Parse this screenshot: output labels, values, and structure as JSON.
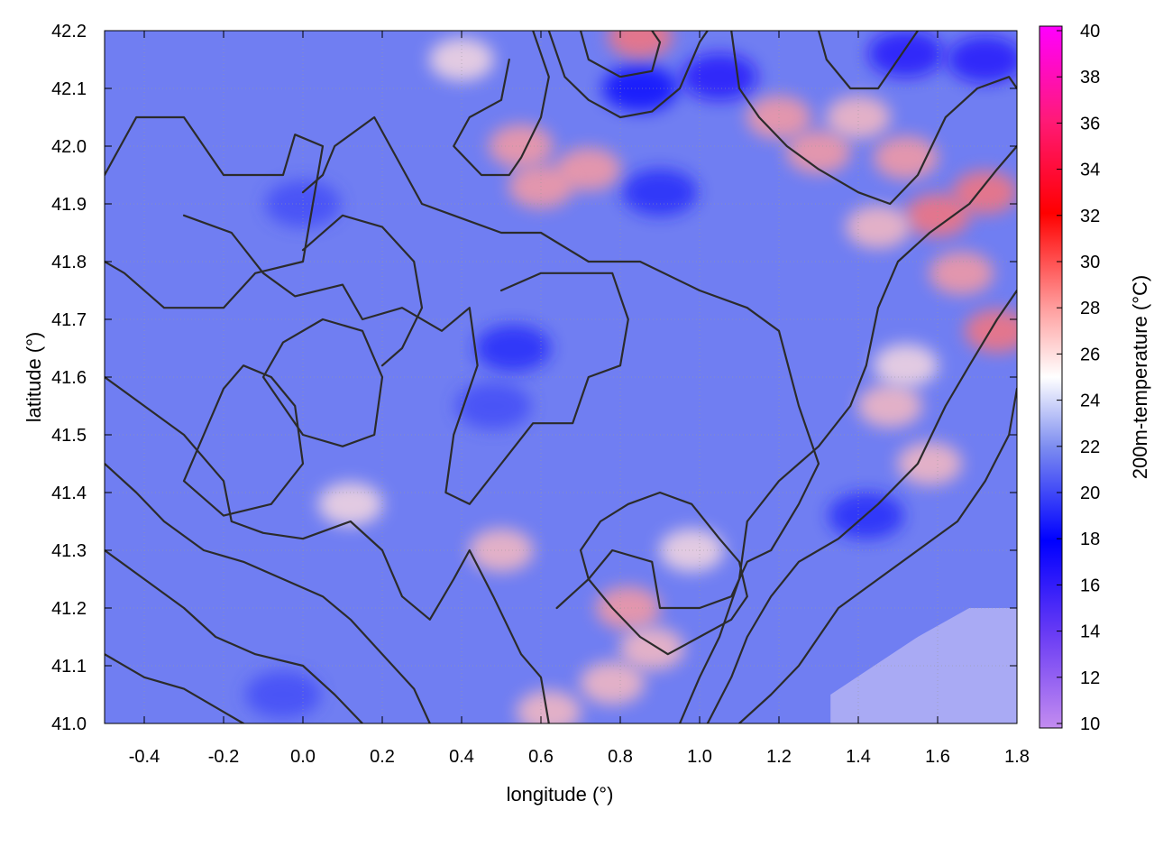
{
  "chart_data": {
    "type": "heatmap",
    "title": "",
    "xlabel": "longitude (°)",
    "ylabel": "latitude (°)",
    "colorbar_label": "200m-temperature (°C)",
    "xlim": [
      -0.5,
      1.8
    ],
    "ylim": [
      41.0,
      42.2
    ],
    "clim": [
      10,
      40
    ],
    "x_ticks": [
      {
        "value": -0.4,
        "label": "-0.4"
      },
      {
        "value": -0.2,
        "label": "-0.2"
      },
      {
        "value": 0.0,
        "label": "0.0"
      },
      {
        "value": 0.2,
        "label": "0.2"
      },
      {
        "value": 0.4,
        "label": "0.4"
      },
      {
        "value": 0.6,
        "label": "0.6"
      },
      {
        "value": 0.8,
        "label": "0.8"
      },
      {
        "value": 1.0,
        "label": "1.0"
      },
      {
        "value": 1.2,
        "label": "1.2"
      },
      {
        "value": 1.4,
        "label": "1.4"
      },
      {
        "value": 1.6,
        "label": "1.6"
      },
      {
        "value": 1.8,
        "label": "1.8"
      }
    ],
    "y_ticks": [
      {
        "value": 41.0,
        "label": "41.0"
      },
      {
        "value": 41.1,
        "label": "41.1"
      },
      {
        "value": 41.2,
        "label": "41.2"
      },
      {
        "value": 41.3,
        "label": "41.3"
      },
      {
        "value": 41.4,
        "label": "41.4"
      },
      {
        "value": 41.5,
        "label": "41.5"
      },
      {
        "value": 41.6,
        "label": "41.6"
      },
      {
        "value": 41.7,
        "label": "41.7"
      },
      {
        "value": 41.8,
        "label": "41.8"
      },
      {
        "value": 41.9,
        "label": "41.9"
      },
      {
        "value": 42.0,
        "label": "42.0"
      },
      {
        "value": 42.1,
        "label": "42.1"
      },
      {
        "value": 42.2,
        "label": "42.2"
      }
    ],
    "cb_ticks": [
      {
        "value": 10,
        "label": "10"
      },
      {
        "value": 12,
        "label": "12"
      },
      {
        "value": 14,
        "label": "14"
      },
      {
        "value": 16,
        "label": "16"
      },
      {
        "value": 18,
        "label": "18"
      },
      {
        "value": 20,
        "label": "20"
      },
      {
        "value": 22,
        "label": "22"
      },
      {
        "value": 24,
        "label": "24"
      },
      {
        "value": 26,
        "label": "26"
      },
      {
        "value": 28,
        "label": "28"
      },
      {
        "value": 30,
        "label": "30"
      },
      {
        "value": 32,
        "label": "32"
      },
      {
        "value": 34,
        "label": "34"
      },
      {
        "value": 36,
        "label": "36"
      },
      {
        "value": 38,
        "label": "38"
      },
      {
        "value": 40,
        "label": "40"
      }
    ],
    "colormap": [
      {
        "value": 10,
        "color": "#c38cf0"
      },
      {
        "value": 14,
        "color": "#6a3cf4"
      },
      {
        "value": 18,
        "color": "#0000ff"
      },
      {
        "value": 22,
        "color": "#7c8cf0"
      },
      {
        "value": 25,
        "color": "#ffffff"
      },
      {
        "value": 28,
        "color": "#ff9c9c"
      },
      {
        "value": 32,
        "color": "#ff0000"
      },
      {
        "value": 36,
        "color": "#ff1a78"
      },
      {
        "value": 40,
        "color": "#ff00ff"
      }
    ],
    "grid": true,
    "sea_region": {
      "value": 22.5,
      "color": "#a9aaf4",
      "points": [
        [
          1.33,
          41.0
        ],
        [
          1.33,
          41.05
        ],
        [
          1.55,
          41.15
        ],
        [
          1.68,
          41.2
        ],
        [
          1.8,
          41.2
        ],
        [
          1.8,
          41.0
        ]
      ]
    },
    "warm_patches": [
      {
        "lon": 0.85,
        "lat": 42.19,
        "value": 29
      },
      {
        "lon": 0.72,
        "lat": 41.96,
        "value": 28
      },
      {
        "lon": 0.6,
        "lat": 41.93,
        "value": 28
      },
      {
        "lon": 0.55,
        "lat": 42.0,
        "value": 28
      },
      {
        "lon": 1.2,
        "lat": 42.05,
        "value": 28
      },
      {
        "lon": 1.3,
        "lat": 41.99,
        "value": 28
      },
      {
        "lon": 1.4,
        "lat": 42.05,
        "value": 27
      },
      {
        "lon": 1.52,
        "lat": 41.98,
        "value": 28
      },
      {
        "lon": 1.6,
        "lat": 41.88,
        "value": 29
      },
      {
        "lon": 1.72,
        "lat": 41.92,
        "value": 29
      },
      {
        "lon": 1.66,
        "lat": 41.78,
        "value": 28
      },
      {
        "lon": 1.75,
        "lat": 41.68,
        "value": 29
      },
      {
        "lon": 1.45,
        "lat": 41.86,
        "value": 27
      },
      {
        "lon": 1.48,
        "lat": 41.55,
        "value": 27
      },
      {
        "lon": 1.58,
        "lat": 41.45,
        "value": 27
      },
      {
        "lon": 1.52,
        "lat": 41.62,
        "value": 26
      },
      {
        "lon": 0.82,
        "lat": 41.2,
        "value": 28
      },
      {
        "lon": 0.88,
        "lat": 41.13,
        "value": 27
      },
      {
        "lon": 0.78,
        "lat": 41.07,
        "value": 27
      },
      {
        "lon": 0.5,
        "lat": 41.3,
        "value": 27
      },
      {
        "lon": 0.62,
        "lat": 41.02,
        "value": 27
      },
      {
        "lon": 0.98,
        "lat": 41.3,
        "value": 26
      },
      {
        "lon": 0.12,
        "lat": 41.38,
        "value": 26
      },
      {
        "lon": 0.4,
        "lat": 42.15,
        "value": 26
      }
    ],
    "cool_patches": [
      {
        "lon": 1.05,
        "lat": 42.12,
        "value": 17
      },
      {
        "lon": 0.85,
        "lat": 42.1,
        "value": 18
      },
      {
        "lon": 1.52,
        "lat": 42.16,
        "value": 17
      },
      {
        "lon": 1.72,
        "lat": 42.15,
        "value": 17
      },
      {
        "lon": 0.53,
        "lat": 41.65,
        "value": 19
      },
      {
        "lon": 0.48,
        "lat": 41.55,
        "value": 20
      },
      {
        "lon": 0.0,
        "lat": 41.9,
        "value": 20
      },
      {
        "lon": -0.05,
        "lat": 41.05,
        "value": 20
      },
      {
        "lon": 0.9,
        "lat": 41.92,
        "value": 19
      },
      {
        "lon": 1.42,
        "lat": 41.36,
        "value": 19
      }
    ],
    "contours": [
      [
        [
          -0.5,
          41.95
        ],
        [
          -0.42,
          42.05
        ],
        [
          -0.3,
          42.05
        ],
        [
          -0.2,
          41.95
        ],
        [
          -0.05,
          41.95
        ],
        [
          -0.02,
          42.02
        ],
        [
          0.05,
          42.0
        ],
        [
          0.02,
          41.88
        ],
        [
          0.0,
          41.8
        ],
        [
          -0.12,
          41.78
        ],
        [
          -0.2,
          41.72
        ],
        [
          -0.35,
          41.72
        ],
        [
          -0.45,
          41.78
        ],
        [
          -0.5,
          41.8
        ]
      ],
      [
        [
          -0.3,
          41.88
        ],
        [
          -0.18,
          41.85
        ],
        [
          -0.1,
          41.78
        ],
        [
          -0.02,
          41.74
        ],
        [
          0.1,
          41.76
        ],
        [
          0.15,
          41.7
        ],
        [
          0.25,
          41.72
        ],
        [
          0.35,
          41.68
        ],
        [
          0.42,
          41.72
        ],
        [
          0.44,
          41.62
        ],
        [
          0.38,
          41.5
        ],
        [
          0.36,
          41.4
        ],
        [
          0.42,
          41.38
        ],
        [
          0.5,
          41.45
        ],
        [
          0.58,
          41.52
        ],
        [
          0.68,
          41.52
        ],
        [
          0.72,
          41.6
        ],
        [
          0.8,
          41.62
        ],
        [
          0.82,
          41.7
        ],
        [
          0.78,
          41.78
        ],
        [
          0.6,
          41.78
        ],
        [
          0.5,
          41.75
        ]
      ],
      [
        [
          0.0,
          41.92
        ],
        [
          0.05,
          41.95
        ],
        [
          0.08,
          42.0
        ],
        [
          0.18,
          42.05
        ],
        [
          0.22,
          42.0
        ],
        [
          0.3,
          41.9
        ],
        [
          0.38,
          41.88
        ],
        [
          0.5,
          41.85
        ],
        [
          0.6,
          41.85
        ],
        [
          0.72,
          41.8
        ],
        [
          0.85,
          41.8
        ],
        [
          1.0,
          41.75
        ],
        [
          1.12,
          41.72
        ],
        [
          1.2,
          41.68
        ],
        [
          1.25,
          41.55
        ],
        [
          1.3,
          41.45
        ],
        [
          1.25,
          41.38
        ],
        [
          1.18,
          41.3
        ],
        [
          1.12,
          41.28
        ],
        [
          1.08,
          41.22
        ],
        [
          1.0,
          41.2
        ],
        [
          0.9,
          41.2
        ],
        [
          0.88,
          41.28
        ],
        [
          0.78,
          41.3
        ],
        [
          0.72,
          41.25
        ],
        [
          0.64,
          41.2
        ]
      ],
      [
        [
          -0.5,
          41.6
        ],
        [
          -0.4,
          41.55
        ],
        [
          -0.3,
          41.5
        ],
        [
          -0.2,
          41.42
        ],
        [
          -0.18,
          41.35
        ],
        [
          -0.1,
          41.33
        ],
        [
          0.0,
          41.32
        ],
        [
          0.12,
          41.35
        ],
        [
          0.2,
          41.3
        ],
        [
          0.25,
          41.22
        ],
        [
          0.32,
          41.18
        ],
        [
          0.38,
          41.25
        ],
        [
          0.42,
          41.3
        ],
        [
          0.48,
          41.22
        ],
        [
          0.55,
          41.12
        ],
        [
          0.6,
          41.08
        ],
        [
          0.62,
          41.0
        ]
      ],
      [
        [
          -0.5,
          41.45
        ],
        [
          -0.42,
          41.4
        ],
        [
          -0.35,
          41.35
        ],
        [
          -0.25,
          41.3
        ],
        [
          -0.15,
          41.28
        ],
        [
          -0.05,
          41.25
        ],
        [
          0.05,
          41.22
        ],
        [
          0.12,
          41.18
        ],
        [
          0.2,
          41.12
        ],
        [
          0.28,
          41.06
        ],
        [
          0.32,
          41.0
        ]
      ],
      [
        [
          -0.5,
          41.3
        ],
        [
          -0.4,
          41.25
        ],
        [
          -0.3,
          41.2
        ],
        [
          -0.22,
          41.15
        ],
        [
          -0.12,
          41.12
        ],
        [
          0.0,
          41.1
        ],
        [
          0.08,
          41.05
        ],
        [
          0.15,
          41.0
        ]
      ],
      [
        [
          -0.5,
          41.12
        ],
        [
          -0.4,
          41.08
        ],
        [
          -0.3,
          41.06
        ],
        [
          -0.2,
          41.02
        ],
        [
          -0.15,
          41.0
        ]
      ],
      [
        [
          1.1,
          41.0
        ],
        [
          1.18,
          41.05
        ],
        [
          1.25,
          41.1
        ],
        [
          1.3,
          41.15
        ],
        [
          1.35,
          41.2
        ],
        [
          1.45,
          41.25
        ],
        [
          1.55,
          41.3
        ],
        [
          1.65,
          41.35
        ],
        [
          1.72,
          41.42
        ],
        [
          1.78,
          41.5
        ],
        [
          1.8,
          41.58
        ]
      ],
      [
        [
          1.02,
          41.0
        ],
        [
          1.08,
          41.08
        ],
        [
          1.12,
          41.15
        ],
        [
          1.18,
          41.22
        ],
        [
          1.25,
          41.28
        ],
        [
          1.35,
          41.32
        ],
        [
          1.45,
          41.38
        ],
        [
          1.55,
          41.45
        ],
        [
          1.62,
          41.55
        ],
        [
          1.68,
          41.62
        ],
        [
          1.75,
          41.7
        ],
        [
          1.8,
          41.75
        ]
      ],
      [
        [
          0.95,
          41.0
        ],
        [
          1.0,
          41.08
        ],
        [
          1.05,
          41.15
        ],
        [
          1.1,
          41.25
        ],
        [
          1.12,
          41.35
        ],
        [
          1.2,
          41.42
        ],
        [
          1.3,
          41.48
        ],
        [
          1.38,
          41.55
        ],
        [
          1.42,
          41.62
        ],
        [
          1.45,
          41.72
        ],
        [
          1.5,
          41.8
        ],
        [
          1.58,
          41.85
        ],
        [
          1.68,
          41.9
        ],
        [
          1.75,
          41.96
        ],
        [
          1.8,
          42.0
        ]
      ],
      [
        [
          0.7,
          41.3
        ],
        [
          0.75,
          41.35
        ],
        [
          0.82,
          41.38
        ],
        [
          0.9,
          41.4
        ],
        [
          0.98,
          41.38
        ],
        [
          1.05,
          41.32
        ],
        [
          1.1,
          41.28
        ],
        [
          1.12,
          41.22
        ],
        [
          1.08,
          41.18
        ],
        [
          1.0,
          41.15
        ],
        [
          0.92,
          41.12
        ],
        [
          0.85,
          41.15
        ],
        [
          0.78,
          41.2
        ],
        [
          0.72,
          41.25
        ],
        [
          0.7,
          41.3
        ]
      ],
      [
        [
          0.52,
          42.15
        ],
        [
          0.5,
          42.08
        ],
        [
          0.42,
          42.05
        ],
        [
          0.38,
          42.0
        ],
        [
          0.45,
          41.95
        ],
        [
          0.52,
          41.95
        ],
        [
          0.55,
          41.98
        ],
        [
          0.6,
          42.05
        ],
        [
          0.62,
          42.12
        ],
        [
          0.58,
          42.2
        ]
      ],
      [
        [
          0.62,
          42.2
        ],
        [
          0.66,
          42.12
        ],
        [
          0.72,
          42.08
        ],
        [
          0.8,
          42.05
        ],
        [
          0.88,
          42.06
        ],
        [
          0.95,
          42.1
        ],
        [
          1.0,
          42.18
        ],
        [
          1.02,
          42.2
        ]
      ],
      [
        [
          0.7,
          42.2
        ],
        [
          0.72,
          42.15
        ],
        [
          0.8,
          42.12
        ],
        [
          0.88,
          42.13
        ],
        [
          0.9,
          42.18
        ],
        [
          0.88,
          42.2
        ]
      ],
      [
        [
          1.08,
          42.2
        ],
        [
          1.1,
          42.1
        ],
        [
          1.15,
          42.05
        ],
        [
          1.22,
          42.0
        ],
        [
          1.3,
          41.96
        ],
        [
          1.4,
          41.92
        ],
        [
          1.48,
          41.9
        ],
        [
          1.55,
          41.95
        ],
        [
          1.62,
          42.05
        ],
        [
          1.7,
          42.1
        ],
        [
          1.78,
          42.12
        ],
        [
          1.8,
          42.1
        ]
      ],
      [
        [
          1.3,
          42.2
        ],
        [
          1.32,
          42.15
        ],
        [
          1.38,
          42.1
        ],
        [
          1.45,
          42.1
        ],
        [
          1.5,
          42.15
        ],
        [
          1.55,
          42.2
        ]
      ],
      [
        [
          -0.1,
          41.6
        ],
        [
          -0.05,
          41.55
        ],
        [
          0.0,
          41.5
        ],
        [
          0.1,
          41.48
        ],
        [
          0.18,
          41.5
        ],
        [
          0.2,
          41.6
        ],
        [
          0.15,
          41.68
        ],
        [
          0.05,
          41.7
        ],
        [
          -0.05,
          41.66
        ],
        [
          -0.1,
          41.6
        ]
      ],
      [
        [
          -0.3,
          41.42
        ],
        [
          -0.25,
          41.5
        ],
        [
          -0.2,
          41.58
        ],
        [
          -0.15,
          41.62
        ],
        [
          -0.08,
          41.6
        ],
        [
          -0.02,
          41.55
        ],
        [
          0.0,
          41.45
        ],
        [
          -0.08,
          41.38
        ],
        [
          -0.2,
          41.36
        ],
        [
          -0.3,
          41.42
        ]
      ],
      [
        [
          0.0,
          41.82
        ],
        [
          0.1,
          41.88
        ],
        [
          0.2,
          41.86
        ],
        [
          0.28,
          41.8
        ],
        [
          0.3,
          41.72
        ],
        [
          0.25,
          41.65
        ],
        [
          0.2,
          41.62
        ]
      ]
    ]
  }
}
